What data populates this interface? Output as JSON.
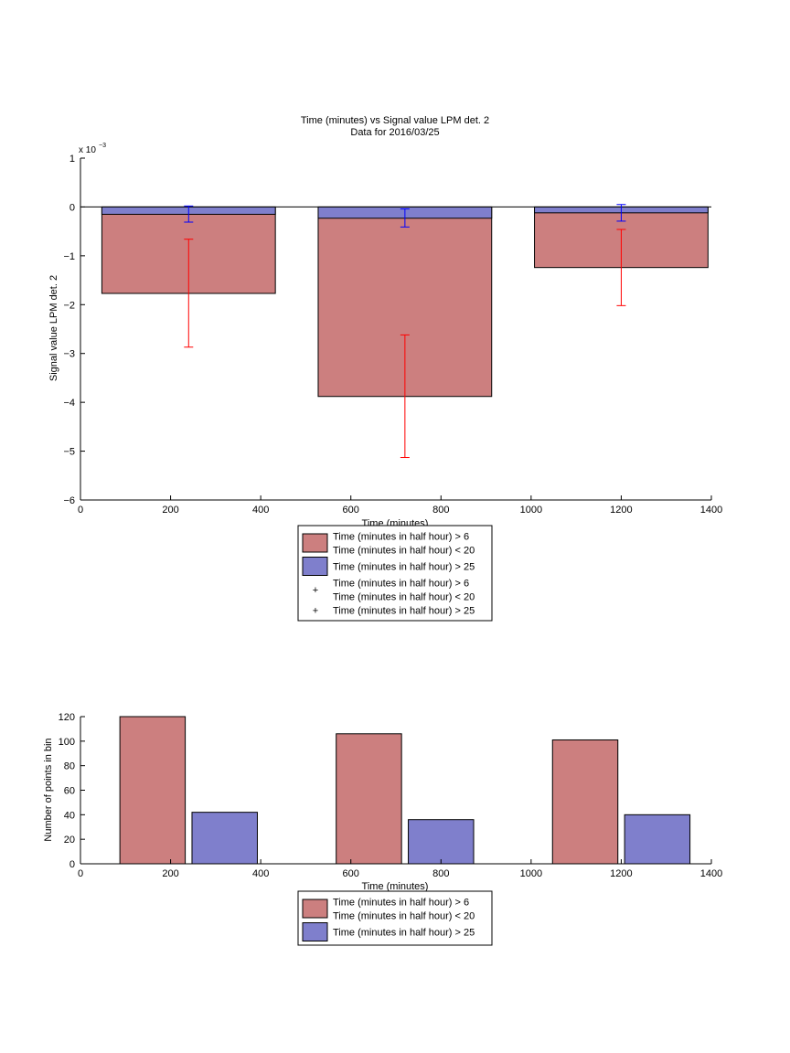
{
  "chart_data": [
    {
      "type": "bar",
      "title": "Time (minutes) vs Signal value LPM det. 2",
      "subtitle": "Data for 2016/03/25",
      "xlabel": "Time (minutes)",
      "ylabel": "Signal value LPM det. 2",
      "exponent_base": "x 10",
      "exponent_power": "−3",
      "xlim": [
        0,
        1400
      ],
      "ylim": [
        -6,
        1
      ],
      "x_ticks": [
        0,
        200,
        400,
        600,
        800,
        1000,
        1200,
        1400
      ],
      "x_tick_labels": [
        "0",
        "200",
        "400",
        "600",
        "800",
        "1000",
        "1200",
        "1400"
      ],
      "y_ticks": [
        -6,
        -5,
        -4,
        -3,
        -2,
        -1,
        0,
        1
      ],
      "y_tick_labels": [
        "−6",
        "−5",
        "−4",
        "−3",
        "−2",
        "−1",
        "0",
        "1"
      ],
      "categories": [
        240,
        720,
        1200
      ],
      "bar_width_minutes": 385,
      "series": [
        {
          "name": "Time (minutes in half hour) > 6 Time (minutes in half hour) < 20",
          "color": "#cc7f7f",
          "values": [
            -1.77,
            -3.88,
            -1.24
          ],
          "errorbar_color": "#ff0000",
          "err_low": [
            -2.87,
            -5.13,
            -2.02
          ],
          "err_high": [
            -0.66,
            -2.62,
            -0.46
          ]
        },
        {
          "name": "Time (minutes in half hour) > 25",
          "color": "#7f7fcc",
          "values": [
            -0.15,
            -0.23,
            -0.12
          ],
          "errorbar_color": "#0000ff",
          "err_low": [
            -0.31,
            -0.41,
            -0.29
          ],
          "err_high": [
            0.02,
            -0.04,
            0.05
          ]
        }
      ],
      "legend": {
        "position": "below",
        "entries": [
          {
            "marker": "patch",
            "color": "#cc7f7f",
            "lines": [
              "Time (minutes in half hour) > 6",
              "Time (minutes in half hour) < 20"
            ]
          },
          {
            "marker": "patch",
            "color": "#7f7fcc",
            "lines": [
              "Time (minutes in half hour) > 25"
            ]
          },
          {
            "marker": "+",
            "color": "#ff0000",
            "lines": [
              "Time (minutes in half hour) > 6",
              "Time (minutes in half hour) < 20"
            ]
          },
          {
            "marker": "+",
            "color": "#0000ff",
            "lines": [
              "Time (minutes in half hour) > 25"
            ]
          }
        ]
      },
      "grid": false
    },
    {
      "type": "bar",
      "title": "",
      "xlabel": "Time (minutes)",
      "ylabel": "Number of points in bin",
      "xlim": [
        0,
        1400
      ],
      "ylim": [
        0,
        120
      ],
      "x_ticks": [
        0,
        200,
        400,
        600,
        800,
        1000,
        1200,
        1400
      ],
      "x_tick_labels": [
        "0",
        "200",
        "400",
        "600",
        "800",
        "1000",
        "1200",
        "1400"
      ],
      "y_ticks": [
        0,
        20,
        40,
        60,
        80,
        100,
        120
      ],
      "y_tick_labels": [
        "0",
        "20",
        "40",
        "60",
        "80",
        "100",
        "120"
      ],
      "bar_width_minutes": 145,
      "series": [
        {
          "name": "Time (minutes in half hour) > 6 Time (minutes in half hour) < 20",
          "color": "#cc7f7f",
          "x": [
            160,
            640,
            1120
          ],
          "values": [
            120,
            106,
            101
          ]
        },
        {
          "name": "Time (minutes in half hour) > 25",
          "color": "#7f7fcc",
          "x": [
            320,
            800,
            1280
          ],
          "values": [
            42,
            36,
            40
          ]
        }
      ],
      "legend": {
        "position": "below",
        "entries": [
          {
            "marker": "patch",
            "color": "#cc7f7f",
            "lines": [
              "Time (minutes in half hour) > 6",
              "Time (minutes in half hour) < 20"
            ]
          },
          {
            "marker": "patch",
            "color": "#7f7fcc",
            "lines": [
              "Time (minutes in half hour) > 25"
            ]
          }
        ]
      },
      "grid": false
    }
  ]
}
